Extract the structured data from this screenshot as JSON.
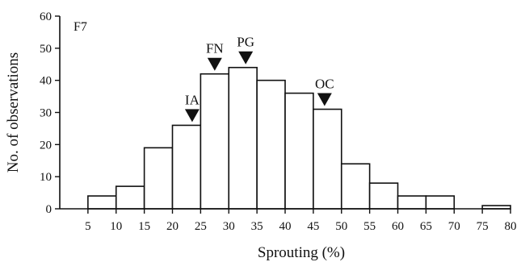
{
  "chart_data": {
    "type": "bar",
    "panel_label": "F7",
    "xlabel": "Sprouting (%)",
    "ylabel": "No. of observations",
    "xlim": [
      0,
      80
    ],
    "ylim": [
      0,
      60
    ],
    "x_ticks": [
      5,
      10,
      15,
      20,
      25,
      30,
      35,
      40,
      45,
      50,
      55,
      60,
      65,
      70,
      75,
      80
    ],
    "y_ticks": [
      0,
      10,
      20,
      30,
      40,
      50,
      60
    ],
    "bin_width": 5,
    "bins": [
      {
        "from": 5,
        "to": 10,
        "value": 4
      },
      {
        "from": 10,
        "to": 15,
        "value": 7
      },
      {
        "from": 15,
        "to": 20,
        "value": 19
      },
      {
        "from": 20,
        "to": 25,
        "value": 26
      },
      {
        "from": 25,
        "to": 30,
        "value": 42
      },
      {
        "from": 30,
        "to": 35,
        "value": 44
      },
      {
        "from": 35,
        "to": 40,
        "value": 40
      },
      {
        "from": 40,
        "to": 45,
        "value": 36
      },
      {
        "from": 45,
        "to": 50,
        "value": 31
      },
      {
        "from": 50,
        "to": 55,
        "value": 14
      },
      {
        "from": 55,
        "to": 60,
        "value": 8
      },
      {
        "from": 60,
        "to": 65,
        "value": 4
      },
      {
        "from": 65,
        "to": 70,
        "value": 4
      },
      {
        "from": 75,
        "to": 80,
        "value": 1
      }
    ],
    "annotations": [
      {
        "label": "IA",
        "x": 23.5
      },
      {
        "label": "FN",
        "x": 27.5
      },
      {
        "label": "PG",
        "x": 33.0
      },
      {
        "label": "OC",
        "x": 47.0
      }
    ],
    "grid": false,
    "legend": "none"
  }
}
